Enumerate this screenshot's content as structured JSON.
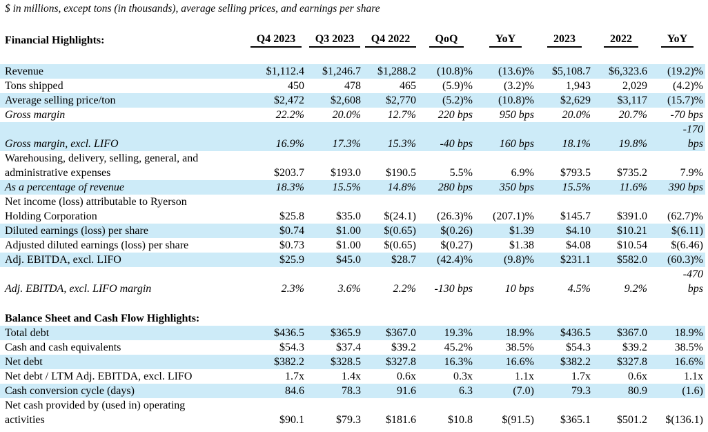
{
  "page": {
    "note": "$ in millions, except tons (in thousands), average selling prices, and earnings per share"
  },
  "colors": {
    "row_highlight": "#CDEBF8",
    "text": "#000000",
    "background": "#FFFFFF"
  },
  "table": {
    "corner_label": "Financial Highlights:",
    "columns": [
      "Q4 2023",
      "Q3 2023",
      "Q4 2022",
      "QoQ",
      "YoY",
      "2023",
      "2022",
      "YoY"
    ],
    "rows": [
      {
        "type": "data",
        "label": "Revenue",
        "values": [
          "$1,112.4",
          "$1,246.7",
          "$1,288.2",
          "(10.8)%",
          "(13.6)%",
          "$5,108.7",
          "$6,323.6",
          "(19.2)%"
        ],
        "italic": false,
        "highlight": true
      },
      {
        "type": "data",
        "label": "Tons shipped",
        "values": [
          "450",
          "478",
          "465",
          "(5.9)%",
          "(3.2)%",
          "1,943",
          "2,029",
          "(4.2)%"
        ],
        "italic": false,
        "highlight": false
      },
      {
        "type": "data",
        "label": "Average selling price/ton",
        "values": [
          "$2,472",
          "$2,608",
          "$2,770",
          "(5.2)%",
          "(10.8)%",
          "$2,629",
          "$3,117",
          "(15.7)%"
        ],
        "italic": false,
        "highlight": true
      },
      {
        "type": "data",
        "label": "Gross margin",
        "values": [
          "22.2%",
          "20.0%",
          "12.7%",
          "220 bps",
          "950 bps",
          "20.0%",
          "20.7%",
          "-70 bps"
        ],
        "italic": true,
        "highlight": false
      },
      {
        "type": "data",
        "label": "Gross margin, excl. LIFO",
        "values": [
          "16.9%",
          "17.3%",
          "15.3%",
          "-40 bps",
          "160 bps",
          "18.1%",
          "19.8%",
          "-170\nbps"
        ],
        "italic": true,
        "highlight": true
      },
      {
        "type": "data",
        "label": "Warehousing, delivery, selling, general, and\nadministrative expenses",
        "values": [
          "$203.7",
          "$193.0",
          "$190.5",
          "5.5%",
          "6.9%",
          "$793.5",
          "$735.2",
          "7.9%"
        ],
        "italic": false,
        "highlight": false
      },
      {
        "type": "data",
        "label": "As a percentage of revenue",
        "values": [
          "18.3%",
          "15.5%",
          "14.8%",
          "280 bps",
          "350 bps",
          "15.5%",
          "11.6%",
          "390 bps"
        ],
        "italic": true,
        "highlight": true
      },
      {
        "type": "data",
        "label": "Net income (loss) attributable to Ryerson\nHolding Corporation",
        "values": [
          "$25.8",
          "$35.0",
          "$(24.1)",
          "(26.3)%",
          "(207.1)%",
          "$145.7",
          "$391.0",
          "(62.7)%"
        ],
        "italic": false,
        "highlight": false
      },
      {
        "type": "data",
        "label": "Diluted earnings (loss) per share",
        "values": [
          "$0.74",
          "$1.00",
          "$(0.65)",
          "$(0.26)",
          "$1.39",
          "$4.10",
          "$10.21",
          "$(6.11)"
        ],
        "italic": false,
        "highlight": true
      },
      {
        "type": "data",
        "label": "Adjusted diluted earnings (loss) per share",
        "values": [
          "$0.73",
          "$1.00",
          "$(0.65)",
          "$(0.27)",
          "$1.38",
          "$4.08",
          "$10.54",
          "$(6.46)"
        ],
        "italic": false,
        "highlight": false
      },
      {
        "type": "data",
        "label": "Adj. EBITDA, excl. LIFO",
        "values": [
          "$25.9",
          "$45.0",
          "$28.7",
          "(42.4)%",
          "(9.8)%",
          "$231.1",
          "$582.0",
          "(60.3)%"
        ],
        "italic": false,
        "highlight": true
      },
      {
        "type": "data",
        "label": "Adj. EBITDA, excl. LIFO margin",
        "values": [
          "2.3%",
          "3.6%",
          "2.2%",
          "-130 bps",
          "10 bps",
          "4.5%",
          "9.2%",
          "-470\nbps"
        ],
        "italic": true,
        "highlight": false
      },
      {
        "type": "spacer"
      },
      {
        "type": "section",
        "label": "Balance Sheet and Cash Flow Highlights:"
      },
      {
        "type": "data",
        "label": "Total debt",
        "values": [
          "$436.5",
          "$365.9",
          "$367.0",
          "19.3%",
          "18.9%",
          "$436.5",
          "$367.0",
          "18.9%"
        ],
        "italic": false,
        "highlight": true
      },
      {
        "type": "data",
        "label": "Cash and cash equivalents",
        "values": [
          "$54.3",
          "$37.4",
          "$39.2",
          "45.2%",
          "38.5%",
          "$54.3",
          "$39.2",
          "38.5%"
        ],
        "italic": false,
        "highlight": false
      },
      {
        "type": "data",
        "label": "Net debt",
        "values": [
          "$382.2",
          "$328.5",
          "$327.8",
          "16.3%",
          "16.6%",
          "$382.2",
          "$327.8",
          "16.6%"
        ],
        "italic": false,
        "highlight": true
      },
      {
        "type": "data",
        "label": "Net debt / LTM Adj. EBITDA, excl. LIFO",
        "values": [
          "1.7x",
          "1.4x",
          "0.6x",
          "0.3x",
          "1.1x",
          "1.7x",
          "0.6x",
          "1.1x"
        ],
        "italic": false,
        "highlight": false
      },
      {
        "type": "data",
        "label": "Cash conversion cycle (days)",
        "values": [
          "84.6",
          "78.3",
          "91.6",
          "6.3",
          "(7.0)",
          "79.3",
          "80.9",
          "(1.6)"
        ],
        "italic": false,
        "highlight": true
      },
      {
        "type": "data",
        "label": "Net cash provided by (used in) operating\nactivities",
        "values": [
          "$90.1",
          "$79.3",
          "$181.6",
          "$10.8",
          "$(91.5)",
          "$365.1",
          "$501.2",
          "$(136.1)"
        ],
        "italic": false,
        "highlight": false
      }
    ]
  }
}
